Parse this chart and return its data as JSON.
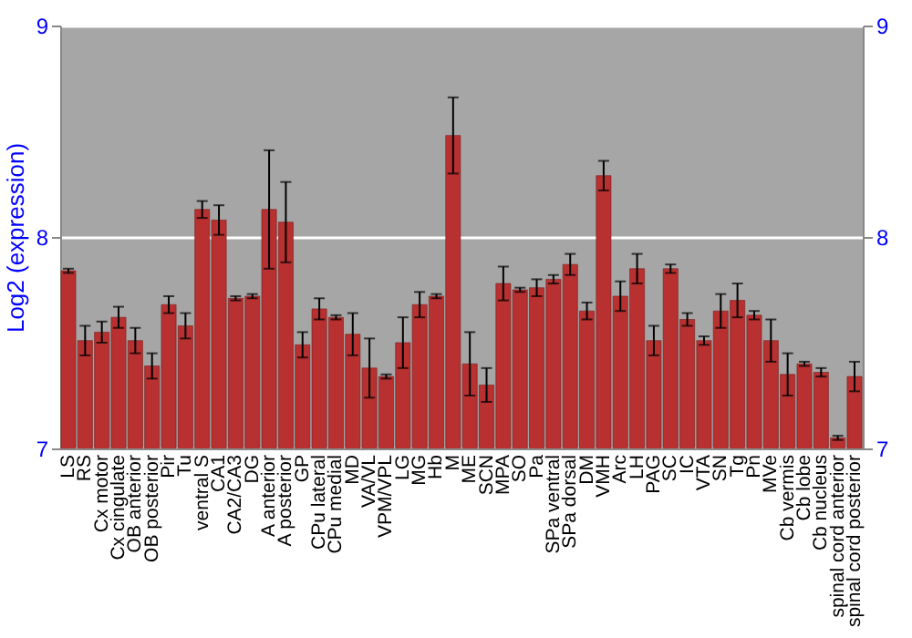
{
  "chart_data": {
    "type": "bar",
    "ylabel": "Log2 (expression)",
    "categories": [
      "LS",
      "RS",
      "Cx motor",
      "Cx cingulate",
      "OB anterior",
      "OB posterior",
      "Pir",
      "Tu",
      "ventral S",
      "CA1",
      "CA2/CA3",
      "DG",
      "A anterior",
      "A posterior",
      "GP",
      "CPu lateral",
      "CPu medial",
      "MD",
      "VA/VL",
      "VPM/VPL",
      "LG",
      "MG",
      "Hb",
      "M",
      "ME",
      "SCN",
      "MPA",
      "SO",
      "Pa",
      "SPa ventral",
      "SPa dorsal",
      "DM",
      "VMH",
      "Arc",
      "LH",
      "PAG",
      "SC",
      "IC",
      "VTA",
      "SN",
      "Tg",
      "Pn",
      "MVe",
      "Cb vermis",
      "Cb lobe",
      "Cb nucleus",
      "spinal cord anterior",
      "spinal cord posterior"
    ],
    "series": [
      {
        "color": "#b83030",
        "values": [
          7.84,
          7.51,
          7.55,
          7.62,
          7.51,
          7.39,
          7.68,
          7.58,
          8.13,
          8.08,
          7.71,
          7.72,
          8.13,
          8.07,
          7.49,
          7.66,
          7.62,
          7.54,
          7.38,
          7.34,
          7.5,
          7.68,
          7.72,
          8.48,
          7.4,
          7.3,
          7.78,
          7.75,
          7.76,
          7.8,
          7.87,
          7.65,
          8.29,
          7.72,
          7.85,
          7.51,
          7.85,
          7.61,
          7.51,
          7.65,
          7.7,
          7.63,
          7.51,
          7.35,
          7.4,
          7.36,
          7.05,
          7.34
        ],
        "errors": [
          0.01,
          0.07,
          0.05,
          0.05,
          0.06,
          0.06,
          0.04,
          0.06,
          0.04,
          0.07,
          0.01,
          0.01,
          0.28,
          0.19,
          0.06,
          0.05,
          0.01,
          0.1,
          0.14,
          0.01,
          0.12,
          0.06,
          0.01,
          0.18,
          0.15,
          0.08,
          0.08,
          0.01,
          0.04,
          0.02,
          0.05,
          0.04,
          0.07,
          0.07,
          0.07,
          0.07,
          0.02,
          0.03,
          0.02,
          0.08,
          0.08,
          0.02,
          0.1,
          0.1,
          0.01,
          0.02,
          0.01,
          0.07
        ]
      }
    ],
    "ylim": [
      7,
      9
    ],
    "yticks": [
      7,
      8,
      9
    ],
    "y2lim": [
      7,
      9
    ],
    "y2ticks": [
      7,
      8,
      9
    ],
    "grid": "y"
  }
}
